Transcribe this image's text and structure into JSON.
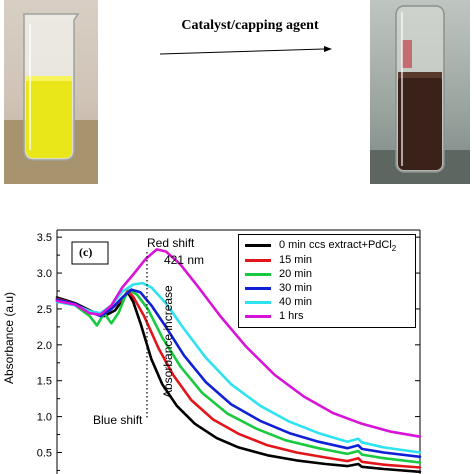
{
  "reaction": {
    "label": "Catalyst/capping agent"
  },
  "photos": {
    "left": "yellow-extract-beaker-photo",
    "right": "brown-nanoparticle-vial-photo"
  },
  "chart_data": {
    "type": "line",
    "panel_label": "(c)",
    "title": "",
    "xlabel": "",
    "ylabel": "Absorbance (a.u)",
    "ylim": [
      0.2,
      3.6
    ],
    "yticks": [
      "0.5",
      "1.0",
      "1.5",
      "2.0",
      "2.5",
      "3.0",
      "3.5"
    ],
    "grid": false,
    "legend_position": "top-right",
    "annotations": {
      "red_shift": "Red shift",
      "peak_wavelength": "421 nm",
      "absorbance_increase": "Absorbance increase",
      "blue_shift": "Blue shift"
    },
    "series": [
      {
        "name": "0 min ccs extract+PdCl",
        "name_sub": "2",
        "color": "#000000",
        "points": [
          [
            0,
            2.66
          ],
          [
            0.05,
            2.58
          ],
          [
            0.09,
            2.48
          ],
          [
            0.13,
            2.4
          ],
          [
            0.16,
            2.48
          ],
          [
            0.18,
            2.62
          ],
          [
            0.195,
            2.73
          ],
          [
            0.21,
            2.6
          ],
          [
            0.23,
            2.3
          ],
          [
            0.26,
            1.8
          ],
          [
            0.29,
            1.45
          ],
          [
            0.33,
            1.15
          ],
          [
            0.38,
            0.9
          ],
          [
            0.44,
            0.7
          ],
          [
            0.5,
            0.57
          ],
          [
            0.58,
            0.46
          ],
          [
            0.66,
            0.39
          ],
          [
            0.74,
            0.34
          ],
          [
            0.8,
            0.31
          ],
          [
            0.83,
            0.34
          ],
          [
            0.84,
            0.3
          ],
          [
            0.9,
            0.27
          ],
          [
            1.0,
            0.23
          ]
        ]
      },
      {
        "name": "15 min",
        "color": "#e3151b",
        "points": [
          [
            0,
            2.64
          ],
          [
            0.05,
            2.57
          ],
          [
            0.09,
            2.46
          ],
          [
            0.12,
            2.43
          ],
          [
            0.15,
            2.5
          ],
          [
            0.18,
            2.64
          ],
          [
            0.195,
            2.75
          ],
          [
            0.21,
            2.67
          ],
          [
            0.24,
            2.4
          ],
          [
            0.28,
            1.95
          ],
          [
            0.32,
            1.58
          ],
          [
            0.37,
            1.23
          ],
          [
            0.43,
            0.96
          ],
          [
            0.5,
            0.76
          ],
          [
            0.58,
            0.6
          ],
          [
            0.66,
            0.5
          ],
          [
            0.74,
            0.43
          ],
          [
            0.8,
            0.38
          ],
          [
            0.83,
            0.42
          ],
          [
            0.84,
            0.37
          ],
          [
            0.9,
            0.33
          ],
          [
            1.0,
            0.29
          ]
        ]
      },
      {
        "name": "20 min",
        "color": "#19c93f",
        "points": [
          [
            0,
            2.62
          ],
          [
            0.05,
            2.55
          ],
          [
            0.09,
            2.4
          ],
          [
            0.11,
            2.27
          ],
          [
            0.13,
            2.44
          ],
          [
            0.15,
            2.3
          ],
          [
            0.17,
            2.45
          ],
          [
            0.19,
            2.7
          ],
          [
            0.2,
            2.76
          ],
          [
            0.22,
            2.7
          ],
          [
            0.25,
            2.5
          ],
          [
            0.29,
            2.1
          ],
          [
            0.34,
            1.7
          ],
          [
            0.4,
            1.33
          ],
          [
            0.47,
            1.04
          ],
          [
            0.55,
            0.83
          ],
          [
            0.63,
            0.67
          ],
          [
            0.72,
            0.56
          ],
          [
            0.8,
            0.48
          ],
          [
            0.83,
            0.52
          ],
          [
            0.84,
            0.47
          ],
          [
            0.9,
            0.42
          ],
          [
            1.0,
            0.36
          ]
        ]
      },
      {
        "name": "30 min",
        "color": "#1020d6",
        "points": [
          [
            0,
            2.63
          ],
          [
            0.05,
            2.57
          ],
          [
            0.09,
            2.46
          ],
          [
            0.12,
            2.4
          ],
          [
            0.15,
            2.5
          ],
          [
            0.18,
            2.66
          ],
          [
            0.205,
            2.77
          ],
          [
            0.23,
            2.73
          ],
          [
            0.26,
            2.55
          ],
          [
            0.3,
            2.25
          ],
          [
            0.35,
            1.85
          ],
          [
            0.41,
            1.48
          ],
          [
            0.48,
            1.17
          ],
          [
            0.56,
            0.94
          ],
          [
            0.64,
            0.77
          ],
          [
            0.72,
            0.65
          ],
          [
            0.8,
            0.56
          ],
          [
            0.83,
            0.6
          ],
          [
            0.84,
            0.55
          ],
          [
            0.9,
            0.5
          ],
          [
            1.0,
            0.44
          ]
        ]
      },
      {
        "name": "40 min",
        "color": "#2fe2ef",
        "points": [
          [
            0,
            2.6
          ],
          [
            0.05,
            2.55
          ],
          [
            0.09,
            2.47
          ],
          [
            0.12,
            2.44
          ],
          [
            0.15,
            2.55
          ],
          [
            0.18,
            2.74
          ],
          [
            0.21,
            2.84
          ],
          [
            0.235,
            2.86
          ],
          [
            0.26,
            2.8
          ],
          [
            0.3,
            2.58
          ],
          [
            0.35,
            2.22
          ],
          [
            0.41,
            1.82
          ],
          [
            0.48,
            1.45
          ],
          [
            0.56,
            1.15
          ],
          [
            0.64,
            0.93
          ],
          [
            0.72,
            0.77
          ],
          [
            0.8,
            0.65
          ],
          [
            0.83,
            0.69
          ],
          [
            0.84,
            0.64
          ],
          [
            0.9,
            0.57
          ],
          [
            1.0,
            0.5
          ]
        ]
      },
      {
        "name": "1 hrs",
        "color": "#d714d7",
        "points": [
          [
            0,
            2.61
          ],
          [
            0.05,
            2.56
          ],
          [
            0.09,
            2.44
          ],
          [
            0.12,
            2.42
          ],
          [
            0.15,
            2.55
          ],
          [
            0.18,
            2.8
          ],
          [
            0.21,
            2.98
          ],
          [
            0.245,
            3.2
          ],
          [
            0.275,
            3.33
          ],
          [
            0.3,
            3.3
          ],
          [
            0.34,
            3.12
          ],
          [
            0.39,
            2.8
          ],
          [
            0.45,
            2.4
          ],
          [
            0.52,
            1.98
          ],
          [
            0.6,
            1.58
          ],
          [
            0.68,
            1.28
          ],
          [
            0.76,
            1.05
          ],
          [
            0.84,
            0.9
          ],
          [
            0.92,
            0.79
          ],
          [
            1.0,
            0.72
          ]
        ]
      }
    ]
  }
}
